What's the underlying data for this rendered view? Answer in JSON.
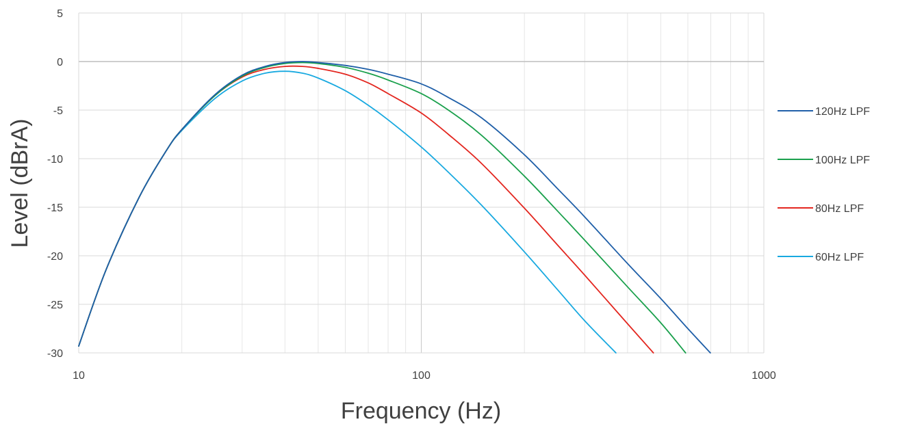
{
  "chart_data": {
    "type": "line",
    "title": "",
    "xlabel": "Frequency (Hz)",
    "ylabel": "Level (dBrA)",
    "xscale": "log",
    "xlim": [
      10,
      1000
    ],
    "ylim": [
      -30,
      5
    ],
    "x_ticks": [
      "10",
      "100",
      "1000"
    ],
    "y_ticks": [
      "5",
      "0",
      "-5",
      "-10",
      "-15",
      "-20",
      "-25",
      "-30"
    ],
    "grid": "on",
    "legend_position": "right",
    "series": [
      {
        "name": "120Hz LPF",
        "color": "#1f5fa8",
        "x": [
          10,
          12,
          15,
          18,
          20,
          25,
          30,
          35,
          40,
          45,
          50,
          60,
          70,
          80,
          100,
          120,
          150,
          200,
          250,
          300,
          400,
          500,
          600,
          698
        ],
        "y": [
          -29.3,
          -21.5,
          -14.0,
          -9.2,
          -7.0,
          -3.4,
          -1.4,
          -0.5,
          -0.1,
          0.0,
          -0.1,
          -0.4,
          -0.8,
          -1.3,
          -2.3,
          -3.7,
          -5.8,
          -9.6,
          -13.1,
          -16.0,
          -20.8,
          -24.4,
          -27.5,
          -30.0
        ]
      },
      {
        "name": "100Hz LPF",
        "color": "#1aa04c",
        "x": [
          10,
          12,
          15,
          18,
          20,
          25,
          30,
          35,
          40,
          45,
          50,
          60,
          70,
          80,
          100,
          120,
          150,
          200,
          250,
          300,
          400,
          500,
          591
        ],
        "y": [
          -29.3,
          -21.5,
          -14.0,
          -9.2,
          -7.0,
          -3.5,
          -1.5,
          -0.6,
          -0.2,
          -0.1,
          -0.2,
          -0.6,
          -1.2,
          -1.9,
          -3.3,
          -5.0,
          -7.6,
          -11.8,
          -15.4,
          -18.4,
          -23.2,
          -26.9,
          -30.0
        ]
      },
      {
        "name": "80Hz LPF",
        "color": "#e3261f",
        "x": [
          10,
          12,
          15,
          18,
          20,
          25,
          30,
          35,
          40,
          45,
          50,
          60,
          70,
          80,
          100,
          120,
          150,
          200,
          250,
          300,
          400,
          476
        ],
        "y": [
          -29.3,
          -21.5,
          -14.0,
          -9.2,
          -7.0,
          -3.5,
          -1.6,
          -0.8,
          -0.5,
          -0.5,
          -0.7,
          -1.3,
          -2.2,
          -3.3,
          -5.3,
          -7.5,
          -10.5,
          -15.1,
          -18.9,
          -22.0,
          -27.0,
          -30.0
        ]
      },
      {
        "name": "60Hz LPF",
        "color": "#18a9e0",
        "x": [
          10,
          12,
          15,
          18,
          20,
          25,
          30,
          35,
          40,
          45,
          50,
          60,
          70,
          80,
          100,
          120,
          150,
          200,
          250,
          300,
          370
        ],
        "y": [
          -29.3,
          -21.5,
          -14.0,
          -9.2,
          -7.1,
          -3.8,
          -2.0,
          -1.2,
          -1.0,
          -1.2,
          -1.7,
          -3.0,
          -4.5,
          -6.0,
          -8.8,
          -11.4,
          -14.8,
          -19.6,
          -23.5,
          -26.7,
          -30.0
        ]
      }
    ]
  }
}
